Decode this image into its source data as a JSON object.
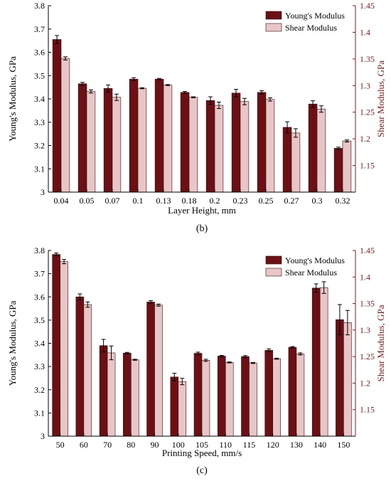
{
  "colors": {
    "young": "#6b1015",
    "shear": "#e8c6c7",
    "right_axis": "#8b1a1a",
    "edge": "#3a0a0a"
  },
  "chart_data": [
    {
      "type": "bar",
      "panel_label": "(b)",
      "xlabel": "Layer Height, mm",
      "ylabel": "Young's Modulus, GPa",
      "ylabel_right": "Shear Modulus, GPa",
      "categories": [
        "0.04",
        "0.05",
        "0.07",
        "0.1",
        "0.13",
        "0.18",
        "0.2",
        "0.23",
        "0.25",
        "0.27",
        "0.3",
        "0.32"
      ],
      "ylim": [
        3,
        3.8
      ],
      "yticks": [
        "3",
        "3.1",
        "3.2",
        "3.3",
        "3.4",
        "3.5",
        "3.6",
        "3.7",
        "3.8"
      ],
      "ylim_right": [
        1.1,
        1.45
      ],
      "yticks_right": [
        "1.15",
        "1.2",
        "1.25",
        "1.3",
        "1.35",
        "1.4",
        "1.45"
      ],
      "legend_position": "top-right",
      "series": [
        {
          "name": "Young's Modulus",
          "axis": "left",
          "values": [
            3.655,
            3.465,
            3.445,
            3.485,
            3.485,
            3.428,
            3.393,
            3.425,
            3.428,
            3.278,
            3.378,
            3.188
          ],
          "errors": [
            0.017,
            0.006,
            0.015,
            0.006,
            0.003,
            0.004,
            0.016,
            0.016,
            0.007,
            0.024,
            0.014,
            0.005
          ]
        },
        {
          "name": "Shear Modulus",
          "axis": "right",
          "values": [
            1.351,
            1.289,
            1.278,
            1.295,
            1.301,
            1.278,
            1.263,
            1.27,
            1.274,
            1.211,
            1.256,
            1.196
          ],
          "errors": [
            0.003,
            0.003,
            0.006,
            0.001,
            0.001,
            0.001,
            0.006,
            0.006,
            0.003,
            0.008,
            0.006,
            0.002
          ]
        }
      ]
    },
    {
      "type": "bar",
      "panel_label": "(c)",
      "xlabel": "Printing Speed, mm/s",
      "ylabel": "Young's Modulus, GPa",
      "ylabel_right": "Shear Modulus, GPa",
      "categories": [
        "50",
        "60",
        "70",
        "80",
        "90",
        "100",
        "105",
        "110",
        "115",
        "120",
        "130",
        "140",
        "150"
      ],
      "ylim": [
        3,
        3.8
      ],
      "yticks": [
        "3",
        "3.1",
        "3.2",
        "3.3",
        "3.4",
        "3.5",
        "3.6",
        "3.7",
        "3.8"
      ],
      "ylim_right": [
        1.1,
        1.45
      ],
      "yticks_right": [
        "1.15",
        "1.2",
        "1.25",
        "1.3",
        "1.35",
        "1.4",
        "1.45"
      ],
      "legend_position": "top-right",
      "series": [
        {
          "name": "Young's Modulus",
          "axis": "left",
          "values": [
            3.783,
            3.6,
            3.39,
            3.358,
            3.578,
            3.255,
            3.357,
            3.345,
            3.343,
            3.37,
            3.383,
            3.638,
            3.502
          ],
          "errors": [
            0.006,
            0.013,
            0.027,
            0.003,
            0.006,
            0.016,
            0.005,
            0.003,
            0.004,
            0.006,
            0.003,
            0.018,
            0.065
          ]
        },
        {
          "name": "Shear Modulus",
          "axis": "right",
          "values": [
            1.429,
            1.348,
            1.257,
            1.244,
            1.347,
            1.203,
            1.243,
            1.239,
            1.238,
            1.246,
            1.255,
            1.38,
            1.314
          ],
          "errors": [
            0.004,
            0.005,
            0.013,
            0.001,
            0.002,
            0.006,
            0.002,
            0.001,
            0.001,
            0.001,
            0.002,
            0.011,
            0.023
          ]
        }
      ]
    }
  ]
}
